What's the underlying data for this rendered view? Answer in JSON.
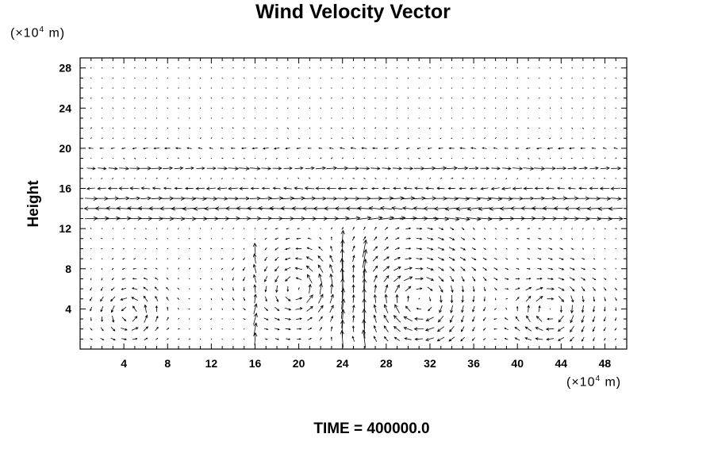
{
  "chart_data": {
    "type": "vector-field",
    "title": "Wind Velocity Vector",
    "xlabel": "",
    "ylabel": "Height",
    "x_unit_prefix": "(×10",
    "x_unit_exp": "4",
    "x_unit_suffix": " m)",
    "y_unit_prefix": "(×10",
    "y_unit_exp": "4",
    "y_unit_suffix": " m)",
    "xlim": [
      0,
      50
    ],
    "ylim": [
      0,
      29
    ],
    "xticks": [
      4,
      8,
      12,
      16,
      20,
      24,
      28,
      32,
      36,
      40,
      44,
      48
    ],
    "yticks": [
      4,
      8,
      12,
      16,
      20,
      24,
      28
    ],
    "grid": false,
    "features": {
      "jets": [
        {
          "y": 20,
          "direction": "westward",
          "strength": 0.6
        },
        {
          "y": 18,
          "direction": "eastward",
          "strength": 1.3
        },
        {
          "y": 16,
          "direction": "westward",
          "strength": 1.2
        },
        {
          "y": 15,
          "direction": "eastward",
          "strength": 1.6
        },
        {
          "y": 14,
          "direction": "westward",
          "strength": 2.0
        },
        {
          "y": 13,
          "direction": "eastward",
          "strength": 1.8
        }
      ],
      "vortices": [
        {
          "x": 4.5,
          "y": 3.5,
          "radius": 2.5,
          "rotation": "ccw"
        },
        {
          "x": 20,
          "y": 6,
          "radius": 3.5,
          "rotation": "ccw"
        },
        {
          "x": 31,
          "y": 5,
          "radius": 5.5,
          "rotation": "cw"
        },
        {
          "x": 43,
          "y": 4,
          "radius": 3.5,
          "rotation": "cw"
        }
      ],
      "updrafts": [
        {
          "x": 16,
          "y_range": [
            1,
            10
          ]
        },
        {
          "x": 24,
          "y_range": [
            1,
            11
          ]
        },
        {
          "x": 26,
          "y_range": [
            1,
            10
          ]
        }
      ]
    }
  },
  "footer": {
    "time_label": "TIME = 400000.0"
  }
}
